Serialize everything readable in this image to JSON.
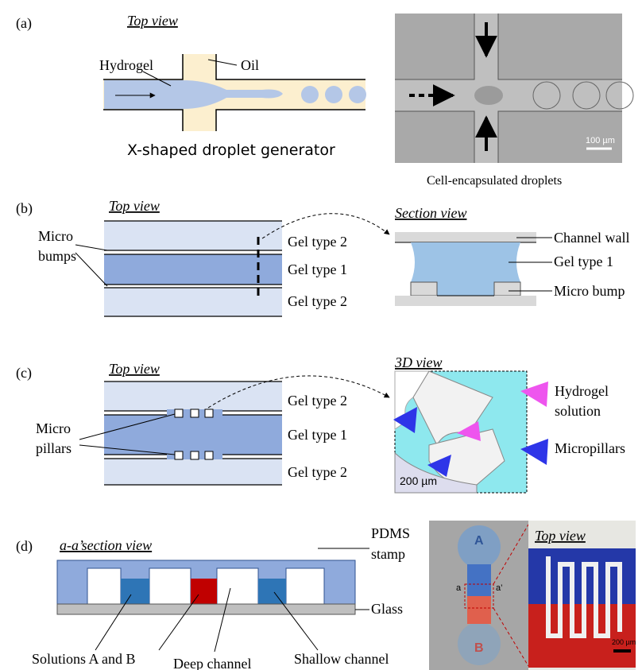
{
  "panel_a": {
    "label": "(a)",
    "view": "Top view",
    "hydrogel": "Hydrogel",
    "oil": "Oil",
    "caption": "X-shaped droplet generator",
    "scale": "100 µm",
    "photo_caption": "Cell-encapsulated droplets"
  },
  "panel_b": {
    "label": "(b)",
    "view": "Top view",
    "bumps": [
      "Micro",
      "bumps"
    ],
    "gel_top": "Gel type 2",
    "gel_mid": "Gel type 1",
    "gel_bot": "Gel type 2",
    "section": "Section view",
    "wall": "Channel wall",
    "gel_section": "Gel type 1",
    "bump": "Micro bump"
  },
  "panel_c": {
    "label": "(c)",
    "view": "Top view",
    "pillars": [
      "Micro",
      "pillars"
    ],
    "gel_top": "Gel type 2",
    "gel_mid": "Gel type 1",
    "gel_bot": "Gel type 2",
    "view3d": "3D view",
    "hydrogel": [
      "Hydrogel",
      "solution"
    ],
    "micropillars": "Micropillars",
    "scale": "200 µm"
  },
  "panel_d": {
    "label": "(d)",
    "section": "a-a’section view",
    "pdms": [
      "PDMS",
      "stamp"
    ],
    "glass": "Glass",
    "solutions": "Solutions A and B",
    "deep": "Deep channel",
    "shallow": "Shallow channel",
    "view": "Top view",
    "inlet_a": "A",
    "inlet_b": "B",
    "cut_a": "a",
    "cut_a2": "a’",
    "scale": "200 µm"
  }
}
